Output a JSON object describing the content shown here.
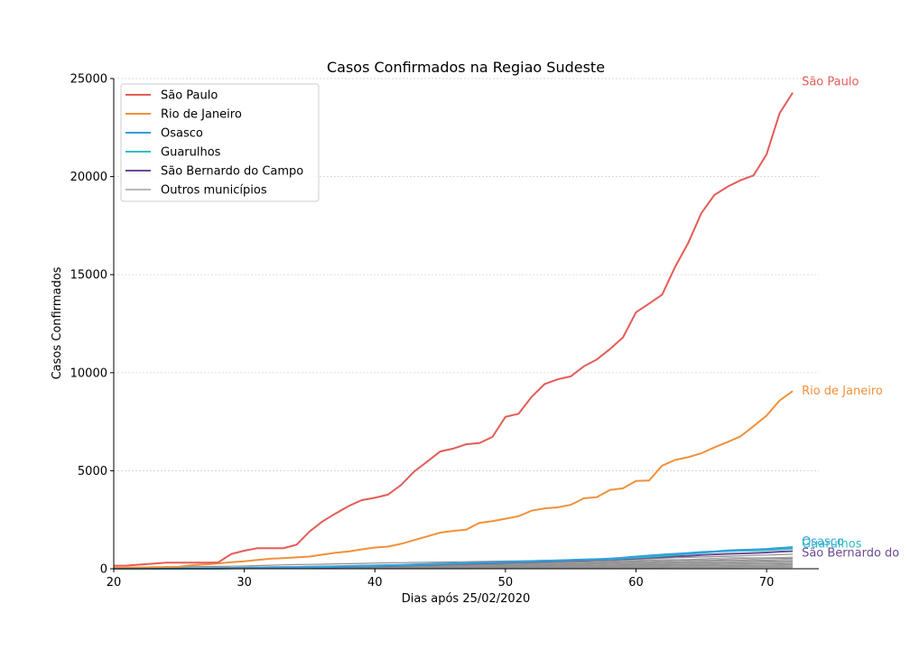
{
  "chart_data": {
    "type": "line",
    "title": "Casos Confirmados na Regiao Sudeste",
    "xlabel": "Dias após 25/02/2020",
    "ylabel": "Casos Confirmados",
    "xlim": [
      20,
      74
    ],
    "ylim": [
      0,
      25000
    ],
    "xticks": [
      20,
      30,
      40,
      50,
      60,
      70
    ],
    "yticks": [
      0,
      5000,
      10000,
      15000,
      20000,
      25000
    ],
    "grid": "horizontal dotted",
    "legend_position": "upper-left",
    "x": [
      20,
      21,
      22,
      23,
      24,
      25,
      26,
      27,
      28,
      29,
      30,
      31,
      32,
      33,
      34,
      35,
      36,
      37,
      38,
      39,
      40,
      41,
      42,
      43,
      44,
      45,
      46,
      47,
      48,
      49,
      50,
      51,
      52,
      53,
      54,
      55,
      56,
      57,
      58,
      59,
      60,
      61,
      62,
      63,
      64,
      65,
      66,
      67,
      68,
      69,
      70,
      71,
      72
    ],
    "series": [
      {
        "name": "São Paulo",
        "color": "#e45c56",
        "values": [
          150,
          160,
          210,
          260,
          310,
          310,
          310,
          310,
          320,
          750,
          920,
          1050,
          1050,
          1050,
          1230,
          1900,
          2420,
          2820,
          3200,
          3500,
          3620,
          3780,
          4270,
          4950,
          5460,
          5980,
          6130,
          6350,
          6410,
          6720,
          7750,
          7900,
          8760,
          9420,
          9660,
          9810,
          10320,
          10670,
          11200,
          11800,
          13080,
          13520,
          13980,
          15400,
          16620,
          18130,
          19060,
          19480,
          19810,
          20060,
          21130,
          23230,
          24280
        ]
      },
      {
        "name": "Rio de Janeiro",
        "color": "#f0913a",
        "values": [
          50,
          60,
          70,
          80,
          90,
          100,
          180,
          220,
          270,
          330,
          380,
          450,
          510,
          540,
          580,
          620,
          720,
          820,
          880,
          990,
          1080,
          1130,
          1270,
          1460,
          1650,
          1840,
          1930,
          2000,
          2340,
          2430,
          2550,
          2680,
          2960,
          3080,
          3130,
          3260,
          3590,
          3650,
          4020,
          4100,
          4480,
          4500,
          5260,
          5550,
          5690,
          5890,
          6190,
          6460,
          6750,
          7270,
          7810,
          8580,
          9060
        ]
      },
      {
        "name": "Osasco",
        "color": "#2f9fe0",
        "values": [
          0,
          0,
          0,
          0,
          5,
          8,
          10,
          15,
          20,
          25,
          30,
          40,
          50,
          60,
          70,
          85,
          100,
          115,
          130,
          150,
          165,
          180,
          200,
          220,
          240,
          260,
          275,
          290,
          310,
          330,
          350,
          370,
          390,
          410,
          430,
          450,
          470,
          490,
          520,
          560,
          620,
          670,
          720,
          760,
          800,
          850,
          880,
          930,
          960,
          980,
          1010,
          1060,
          1100
        ]
      },
      {
        "name": "Guarulhos",
        "color": "#30bdc1",
        "values": [
          0,
          0,
          0,
          0,
          5,
          8,
          10,
          15,
          18,
          22,
          28,
          35,
          45,
          55,
          65,
          75,
          88,
          100,
          115,
          130,
          145,
          160,
          180,
          200,
          220,
          240,
          260,
          280,
          300,
          320,
          340,
          360,
          380,
          400,
          420,
          440,
          460,
          480,
          500,
          530,
          570,
          610,
          660,
          710,
          760,
          810,
          860,
          900,
          920,
          930,
          950,
          990,
          1030
        ]
      },
      {
        "name": "São Bernardo do Campo",
        "color": "#6c4a94",
        "values": [
          0,
          0,
          0,
          0,
          5,
          8,
          10,
          12,
          15,
          18,
          22,
          28,
          35,
          45,
          55,
          65,
          75,
          85,
          95,
          110,
          125,
          140,
          160,
          180,
          200,
          220,
          240,
          255,
          270,
          290,
          310,
          330,
          350,
          370,
          390,
          410,
          430,
          450,
          470,
          490,
          520,
          560,
          590,
          630,
          660,
          700,
          730,
          760,
          780,
          800,
          830,
          870,
          900
        ]
      },
      {
        "name": "Outros municípios",
        "color": "#8e8e8e",
        "values": [
          60,
          65,
          70,
          75,
          85,
          95,
          105,
          110,
          120,
          130,
          140,
          160,
          180,
          200,
          210,
          220,
          230,
          250,
          260,
          270,
          290,
          300,
          310,
          320,
          330,
          340,
          350,
          360,
          370,
          380,
          390,
          400,
          410,
          420,
          430,
          440,
          450,
          460,
          470,
          490,
          510,
          520,
          540,
          560,
          580,
          600,
          620,
          640,
          660,
          680,
          700,
          720,
          740
        ]
      }
    ],
    "end_labels": [
      "São Paulo",
      "Rio de Janeiro",
      "Osasco",
      "Guarulhos",
      "São Bernardo do"
    ]
  }
}
